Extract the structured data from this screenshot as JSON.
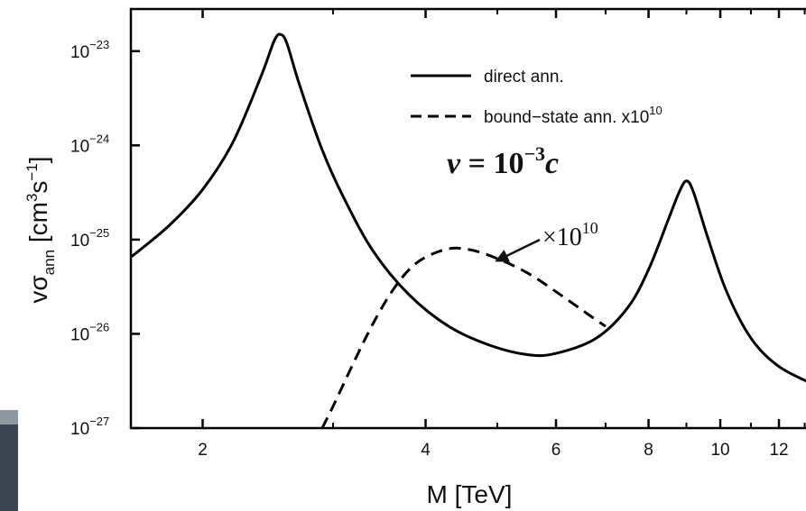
{
  "chart_data": {
    "type": "line",
    "xlabel": "M [TeV]",
    "ylabel": {
      "base": "vσ",
      "sub": "ann",
      "units": " [cm",
      "u1": "3",
      "mid": "s",
      "u2": "−1",
      "close": "]"
    },
    "x_scale": "log",
    "y_scale": "log",
    "xlim": [
      1.6,
      13.5
    ],
    "ylim": [
      1e-27,
      2.8e-23
    ],
    "x_ticks": [
      {
        "value": 2,
        "label": "2"
      },
      {
        "value": 4,
        "label": "4"
      },
      {
        "value": 6,
        "label": "6"
      },
      {
        "value": 8,
        "label": "8"
      },
      {
        "value": 10,
        "label": "10"
      },
      {
        "value": 12,
        "label": "12"
      }
    ],
    "y_ticks": [
      {
        "value": 1e-23,
        "base": "10",
        "exp": "−23"
      },
      {
        "value": 1e-24,
        "base": "10",
        "exp": "−24"
      },
      {
        "value": 1e-25,
        "base": "10",
        "exp": "−25"
      },
      {
        "value": 1e-26,
        "base": "10",
        "exp": "−26"
      },
      {
        "value": 1e-27,
        "base": "10",
        "exp": "−27"
      }
    ],
    "legend": {
      "placement": "top-right",
      "entries": [
        {
          "series": "direct",
          "label": "direct ann.",
          "style": "solid"
        },
        {
          "series": "bound",
          "label": "bound−state ann. x10",
          "sup": "10",
          "style": "dashed"
        }
      ]
    },
    "annotations": {
      "velocity": {
        "lhs": "v",
        "eq": " = ",
        "base": "10",
        "exp": "−3",
        "rhs": "c"
      },
      "multiplier": {
        "prefix": "×10",
        "exp": "10",
        "arrow_to": {
          "x": 5.0,
          "y": 6.2e-26
        }
      }
    },
    "series": [
      {
        "name": "direct ann.",
        "style": "solid",
        "color": "#000000",
        "x": [
          1.6,
          1.8,
          2.0,
          2.2,
          2.4,
          2.5,
          2.55,
          2.6,
          2.7,
          2.9,
          3.1,
          3.4,
          3.8,
          4.3,
          4.9,
          5.5,
          6.0,
          6.8,
          7.5,
          8.0,
          8.5,
          8.8,
          9.0,
          9.2,
          9.6,
          10.2,
          11.0,
          12.0,
          13.5
        ],
        "y": [
          6.5e-26,
          1.4e-25,
          3.4e-25,
          1.1e-24,
          5.5e-24,
          1.3e-23,
          1.5e-23,
          1.2e-23,
          4.5e-24,
          9e-25,
          2.8e-25,
          7.5e-26,
          2.6e-26,
          1.2e-26,
          7.5e-27,
          6e-27,
          6.2e-27,
          9e-27,
          1.9e-26,
          4.8e-26,
          1.6e-25,
          3.2e-25,
          4.2e-25,
          3.2e-25,
          1.1e-25,
          2.8e-26,
          9e-27,
          4.5e-27,
          2.8e-27
        ]
      },
      {
        "name": "bound-state ann. x10^10",
        "style": "dashed",
        "color": "#000000",
        "x": [
          2.9,
          3.0,
          3.2,
          3.4,
          3.6,
          3.8,
          4.0,
          4.3,
          4.6,
          5.0,
          5.5,
          6.0,
          6.5,
          7.0
        ],
        "y": [
          1e-27,
          1.7e-27,
          5e-27,
          1.3e-26,
          2.8e-26,
          4.8e-26,
          6.5e-26,
          8e-26,
          7.8e-26,
          6.3e-26,
          4.4e-26,
          2.8e-26,
          1.8e-26,
          1.2e-26
        ]
      }
    ]
  }
}
